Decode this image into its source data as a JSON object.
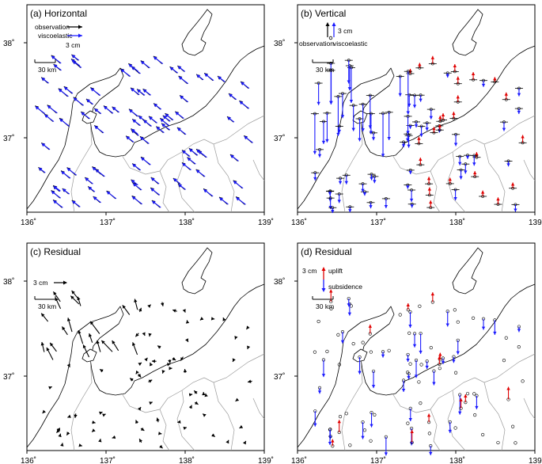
{
  "panels": [
    {
      "id": "a",
      "title": "(a) Horizontal"
    },
    {
      "id": "b",
      "title": "(b) Vertical"
    },
    {
      "id": "c",
      "title": "(c) Residual"
    },
    {
      "id": "d",
      "title": "(d) Residual"
    }
  ],
  "axes": {
    "x_ticks": [
      "136˚",
      "137˚",
      "138˚",
      "139˚"
    ],
    "y_ticks": [
      "38˚",
      "37˚"
    ]
  },
  "scalebar": {
    "label": "30 km"
  },
  "legend_a": {
    "observation": "observation",
    "viscoelastic": "viscoelastic",
    "scale": "3 cm"
  },
  "legend_b": {
    "observation": "observation",
    "viscoelastic": "viscoelastic",
    "scale": "3 cm"
  },
  "legend_c": {
    "scale": "3 cm"
  },
  "legend_d": {
    "scale": "3 cm",
    "uplift": "uplift",
    "subsidence": "subsidence"
  },
  "colors": {
    "observation": "#000000",
    "viscoelastic": "#1a1aff",
    "uplift": "#e00000",
    "subsidence": "#1a1aff",
    "prefecture_border": "#9a9a9a"
  }
}
